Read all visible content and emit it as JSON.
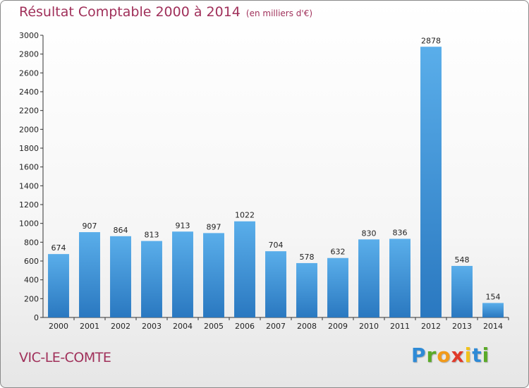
{
  "chart_data": {
    "type": "bar",
    "title": "Résultat Comptable 2000 à 2014",
    "subtitle": "(en milliers d'€)",
    "categories": [
      "2000",
      "2001",
      "2002",
      "2003",
      "2004",
      "2005",
      "2006",
      "2007",
      "2008",
      "2009",
      "2010",
      "2011",
      "2012",
      "2013",
      "2014"
    ],
    "values": [
      674,
      907,
      864,
      813,
      913,
      897,
      1022,
      704,
      578,
      632,
      830,
      836,
      2878,
      548,
      154
    ],
    "ylim": [
      0,
      3000
    ],
    "yticks": [
      0,
      200,
      400,
      600,
      800,
      1000,
      1200,
      1400,
      1600,
      1800,
      2000,
      2200,
      2400,
      2600,
      2800,
      3000
    ],
    "grid": false,
    "bar_color": "#3a8fd8"
  },
  "footer": {
    "commune": "VIC-LE-COMTE",
    "logo_letters": [
      {
        "char": "P",
        "color": "#2e8ad6"
      },
      {
        "char": "r",
        "color": "#5aaa28"
      },
      {
        "char": "o",
        "color": "#f29a1a"
      },
      {
        "char": "x",
        "color": "#e03a2a"
      },
      {
        "char": "i",
        "color": "#f2c21a"
      },
      {
        "char": "t",
        "color": "#2e8ad6"
      },
      {
        "char": "i",
        "color": "#5aaa28"
      }
    ]
  }
}
